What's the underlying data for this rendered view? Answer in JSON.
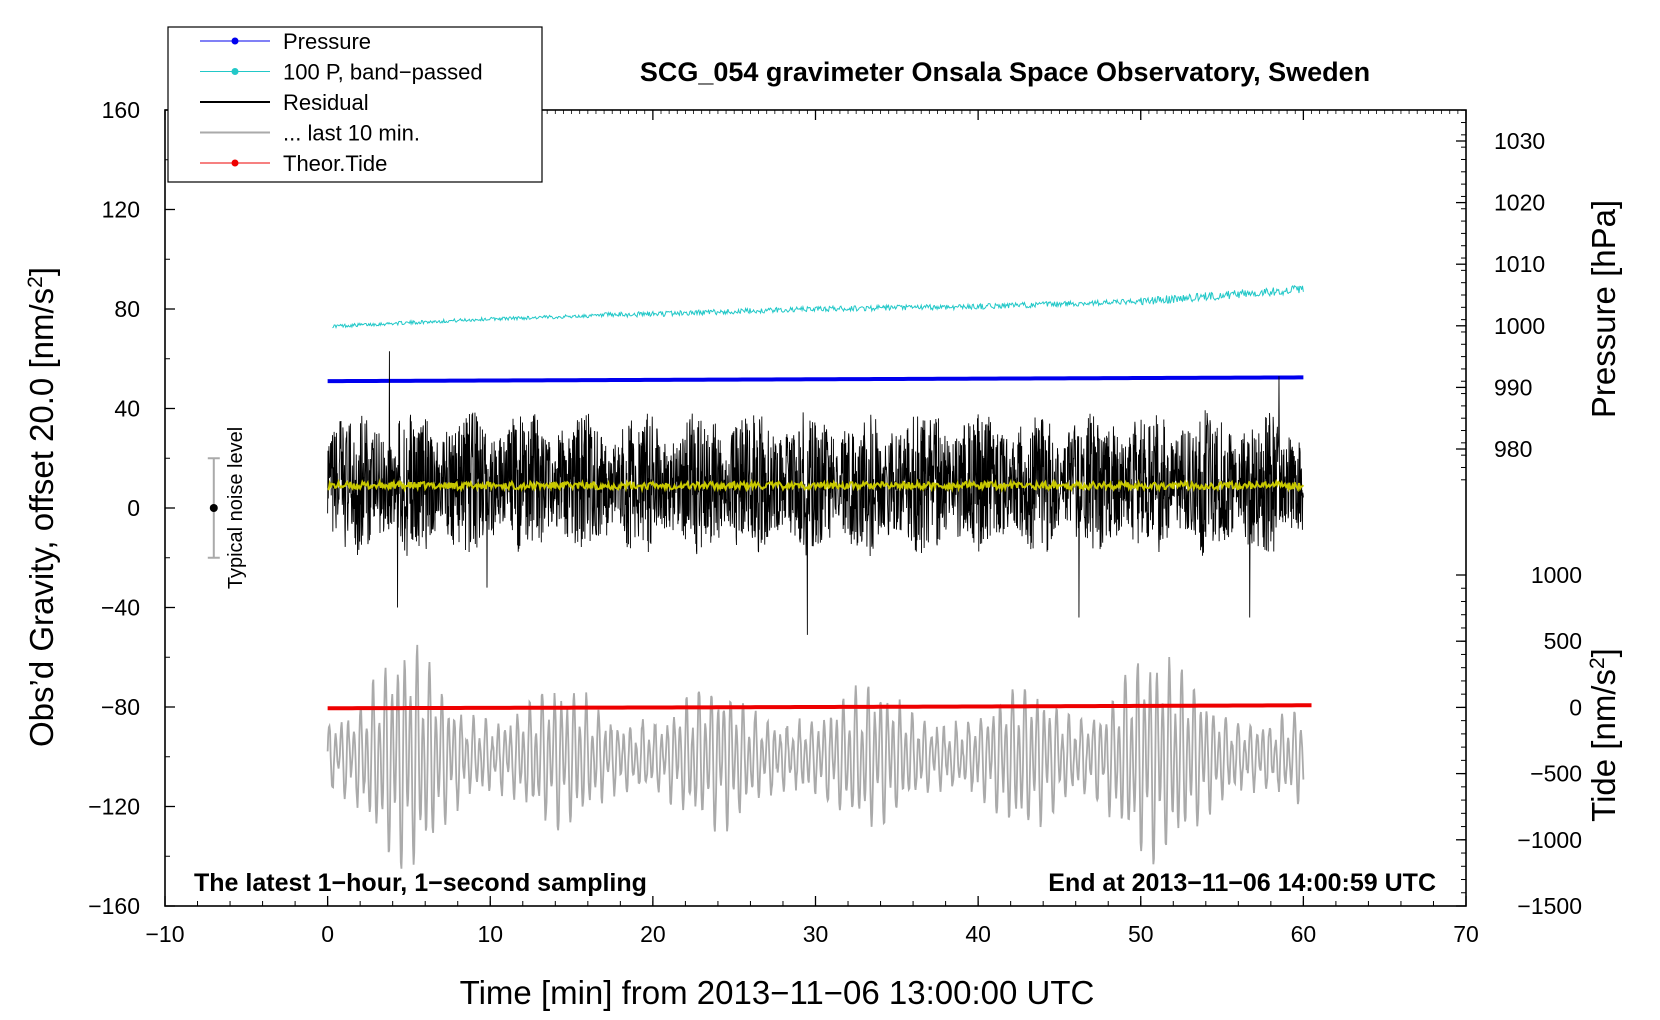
{
  "chart_data": {
    "type": "line",
    "title": "SCG_054 gravimeter Onsala Space Observatory, Sweden",
    "xlabel": "Time [min] from 2013−11−06 13:00:00 UTC",
    "ylabel": "Obs’d Gravity, offset 20.0 [nm/s",
    "ylabel_sup": "2",
    "ylabel_close": "]",
    "xlim": [
      -10,
      70
    ],
    "ylim": [
      -160,
      160
    ],
    "xticks": [
      -10,
      0,
      10,
      20,
      30,
      40,
      50,
      60,
      70
    ],
    "xtick_labels": [
      "−10",
      "0",
      "10",
      "20",
      "30",
      "40",
      "50",
      "60",
      "70"
    ],
    "yticks": [
      160,
      120,
      80,
      40,
      0,
      -40,
      -80,
      -120,
      -160
    ],
    "ytick_labels": [
      "160",
      "120",
      "80",
      "40",
      "0",
      "−40",
      "−80",
      "−120",
      "−160"
    ],
    "right_axes": {
      "pressure": {
        "label": "Pressure [hPa]",
        "ticks": [
          1030,
          1020,
          1010,
          1000,
          990,
          980
        ],
        "tick_labels": [
          "1030",
          "1020",
          "1010",
          "1000",
          "990",
          "980"
        ],
        "range": [
          975,
          1035
        ]
      },
      "tide": {
        "label": "Tide [nm/s",
        "label_sup": "2",
        "label_close": "]",
        "ticks": [
          1000,
          500,
          0,
          -500,
          -1000,
          -1500
        ],
        "tick_labels": [
          "1000",
          "500",
          "0",
          "−500",
          "−1000",
          "−1500"
        ],
        "range": [
          -1500,
          1000
        ]
      }
    },
    "legend": {
      "position": "top-left",
      "entries": [
        {
          "label": "Pressure",
          "color": "#0000ee",
          "marker": true
        },
        {
          "label": "100 P, band−passed",
          "color": "#22c8c8",
          "marker": true
        },
        {
          "label": "Residual",
          "color": "#000000",
          "marker": false
        },
        {
          "label": "... last 10 min.",
          "color": "#aaaaaa",
          "marker": false
        },
        {
          "label": "Theor.Tide",
          "color": "#ee0000",
          "marker": true
        }
      ]
    },
    "series": [
      {
        "name": "Pressure",
        "color": "#0000ee",
        "x": [
          0,
          20,
          40,
          60
        ],
        "y": [
          51,
          51.5,
          52,
          52.5
        ]
      },
      {
        "name": "100 P, band-passed",
        "color": "#22c8c8",
        "x": [
          0,
          5,
          10,
          20,
          30,
          40,
          50,
          60
        ],
        "y": [
          73,
          74.5,
          76,
          78,
          80,
          81,
          83,
          88
        ]
      },
      {
        "name": "Residual",
        "color": "#000000",
        "x": [
          0,
          60
        ],
        "y_center": 10,
        "y_range": [
          -51,
          63
        ]
      },
      {
        "name": "Residual mean",
        "color": "#c8c800",
        "x": [
          0,
          60
        ],
        "y": [
          9,
          9
        ]
      },
      {
        "name": "... last 10 min.",
        "color": "#aaaaaa",
        "x": [
          0,
          60
        ],
        "y_center": -100,
        "y_range": [
          -145,
          -54
        ]
      },
      {
        "name": "Theor.Tide",
        "color": "#ee0000",
        "x": [
          0,
          20,
          40,
          60.5
        ],
        "y": [
          -80.5,
          -80.2,
          -79.8,
          -79.3
        ]
      }
    ],
    "noise_indicator": {
      "label": "Typical noise level",
      "x": -7,
      "y": 0,
      "low": -20,
      "high": 20
    },
    "annotations": {
      "left": "The latest 1−hour, 1−second sampling",
      "right": "End at 2013−11−06 14:00:59 UTC"
    }
  }
}
